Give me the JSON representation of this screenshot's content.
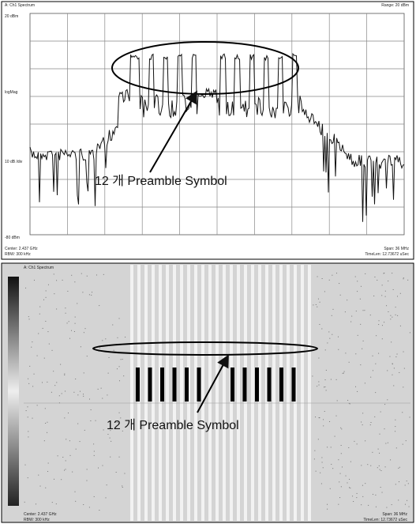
{
  "top_panel": {
    "title": "A: Ch1 Spectrum",
    "range": "Range: 20 dBm",
    "ref_level": "20 dBm",
    "scale_type": "logMag",
    "scale_div": "10 dB /div",
    "bottom_level": "-80 dBm",
    "center": "Center: 2.437 GHz",
    "rbw": "RBW: 300 kHz",
    "span": "Span: 36 MHz",
    "timelen": "TimeLen: 12.73672 uSec",
    "annotation": "12 개 Preamble Symbol"
  },
  "bottom_panel": {
    "title": "A: Ch1 Spectrum",
    "center": "Center: 2.437 GHz",
    "rbw": "RBW: 300 kHz",
    "span": "Span: 36 MHz",
    "timelen": "TimeLen: 12.73672 uSec",
    "annotation": "12 개 Preamble Symbol"
  }
}
